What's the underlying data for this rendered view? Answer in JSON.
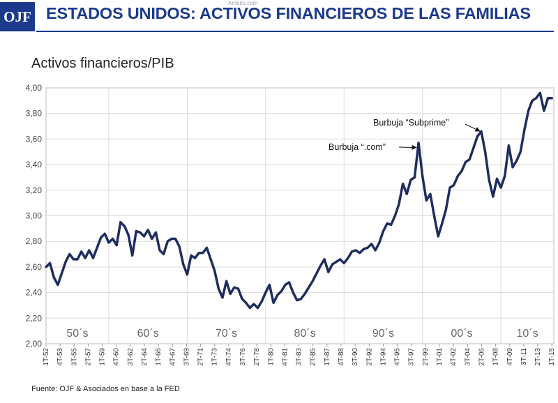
{
  "header": {
    "logo": "OJF",
    "title": "ESTADOS UNIDOS: ACTIVOS FINANCIEROS DE LAS FAMILIAS",
    "watermark": "Ambito.com"
  },
  "footer": {
    "source": "Fuente: OJF & Asociados en base a la FED"
  },
  "colors": {
    "brand": "#1b3a8c",
    "line": "#1f2d5e",
    "grid": "#d9d9d9"
  },
  "chart_data": {
    "type": "line",
    "title": "Activos financieros/PIB",
    "xlabel": "",
    "ylabel": "",
    "ylim": [
      2.0,
      4.0
    ],
    "y_ticks": [
      "4,00",
      "3,80",
      "3,60",
      "3,40",
      "3,20",
      "3,00",
      "2,80",
      "2,60",
      "2,40",
      "2,20",
      "2,00"
    ],
    "x_tick_labels": [
      "1T-52",
      "4T-53",
      "3T-55",
      "2T-57",
      "1T-59",
      "4T-60",
      "3T-62",
      "2T-64",
      "1T-66",
      "4T-67",
      "3T-69",
      "2T-71",
      "1T-73",
      "4T-74",
      "3T-76",
      "2T-78",
      "1T-80",
      "4T-81",
      "3T-83",
      "2T-85",
      "1T-87",
      "4T-88",
      "3T-90",
      "2T-92",
      "1T-94",
      "4T-95",
      "3T-97",
      "2T-99",
      "1T-01",
      "4T-02",
      "3T-04",
      "2T-06",
      "1T-08",
      "4T-09",
      "3T-11",
      "2T-13",
      "1T-15"
    ],
    "decades": [
      "50´s",
      "60´s",
      "70´s",
      "80´s",
      "90´s",
      "00´s",
      "10´s"
    ],
    "decade_starts": [
      1952.0,
      1960.0,
      1970.0,
      1980.0,
      1990.0,
      2000.0,
      2010.0
    ],
    "x_range": [
      1952.0,
      2016.75
    ],
    "grid": true,
    "series": [
      {
        "x": [
          1952.0,
          1952.5,
          1953.0,
          1953.5,
          1954.0,
          1954.5,
          1955.0,
          1955.5,
          1956.0,
          1956.5,
          1957.0,
          1957.5,
          1958.0,
          1958.5,
          1959.0,
          1959.5,
          1960.0,
          1960.5,
          1961.0,
          1961.5,
          1962.0,
          1962.5,
          1963.0,
          1963.5,
          1964.0,
          1964.5,
          1965.0,
          1965.5,
          1966.0,
          1966.5,
          1967.0,
          1967.5,
          1968.0,
          1968.5,
          1969.0,
          1969.5,
          1970.0,
          1970.5,
          1971.0,
          1971.5,
          1972.0,
          1972.5,
          1973.0,
          1973.5,
          1974.0,
          1974.5,
          1975.0,
          1975.5,
          1976.0,
          1976.5,
          1977.0,
          1977.5,
          1978.0,
          1978.5,
          1979.0,
          1979.5,
          1980.0,
          1980.5,
          1981.0,
          1981.5,
          1982.0,
          1982.5,
          1983.0,
          1983.5,
          1984.0,
          1984.5,
          1985.0,
          1985.5,
          1986.0,
          1986.5,
          1987.0,
          1987.5,
          1988.0,
          1988.5,
          1989.0,
          1989.5,
          1990.0,
          1990.5,
          1991.0,
          1991.5,
          1992.0,
          1992.5,
          1993.0,
          1993.5,
          1994.0,
          1994.5,
          1995.0,
          1995.5,
          1996.0,
          1996.5,
          1997.0,
          1997.5,
          1998.0,
          1998.5,
          1999.0,
          1999.5,
          2000.0,
          2000.5,
          2001.0,
          2001.5,
          2002.0,
          2002.5,
          2003.0,
          2003.5,
          2004.0,
          2004.5,
          2005.0,
          2005.5,
          2006.0,
          2006.5,
          2007.0,
          2007.5,
          2008.0,
          2008.5,
          2009.0,
          2009.5,
          2010.0,
          2010.5,
          2011.0,
          2011.5,
          2012.0,
          2012.5,
          2013.0,
          2013.5,
          2014.0,
          2014.5,
          2015.0,
          2015.5,
          2016.0,
          2016.5
        ],
        "values": [
          2.6,
          2.63,
          2.52,
          2.46,
          2.55,
          2.64,
          2.7,
          2.66,
          2.66,
          2.72,
          2.67,
          2.73,
          2.67,
          2.75,
          2.83,
          2.86,
          2.79,
          2.82,
          2.77,
          2.95,
          2.92,
          2.85,
          2.69,
          2.88,
          2.87,
          2.84,
          2.89,
          2.82,
          2.87,
          2.73,
          2.7,
          2.8,
          2.82,
          2.82,
          2.76,
          2.62,
          2.54,
          2.69,
          2.67,
          2.71,
          2.71,
          2.75,
          2.66,
          2.57,
          2.43,
          2.36,
          2.49,
          2.39,
          2.44,
          2.43,
          2.35,
          2.32,
          2.28,
          2.31,
          2.28,
          2.33,
          2.4,
          2.46,
          2.32,
          2.38,
          2.41,
          2.46,
          2.48,
          2.4,
          2.34,
          2.35,
          2.39,
          2.44,
          2.49,
          2.55,
          2.61,
          2.66,
          2.56,
          2.62,
          2.64,
          2.66,
          2.63,
          2.67,
          2.72,
          2.73,
          2.71,
          2.74,
          2.75,
          2.78,
          2.73,
          2.79,
          2.88,
          2.94,
          2.93,
          3.0,
          3.09,
          3.25,
          3.17,
          3.28,
          3.3,
          3.57,
          3.31,
          3.12,
          3.17,
          3.0,
          2.84,
          2.94,
          3.05,
          3.22,
          3.24,
          3.31,
          3.35,
          3.42,
          3.44,
          3.53,
          3.62,
          3.66,
          3.5,
          3.28,
          3.15,
          3.29,
          3.22,
          3.31,
          3.55,
          3.38,
          3.43,
          3.5,
          3.67,
          3.82,
          3.9,
          3.92,
          3.96,
          3.82,
          3.92,
          3.92
        ]
      }
    ],
    "annotations": [
      {
        "text": "Burbuja “.com”",
        "x": 1999.75,
        "y": 3.55
      },
      {
        "text": "Burbuja “Subprime”",
        "x": 2007.5,
        "y": 3.64
      }
    ]
  }
}
